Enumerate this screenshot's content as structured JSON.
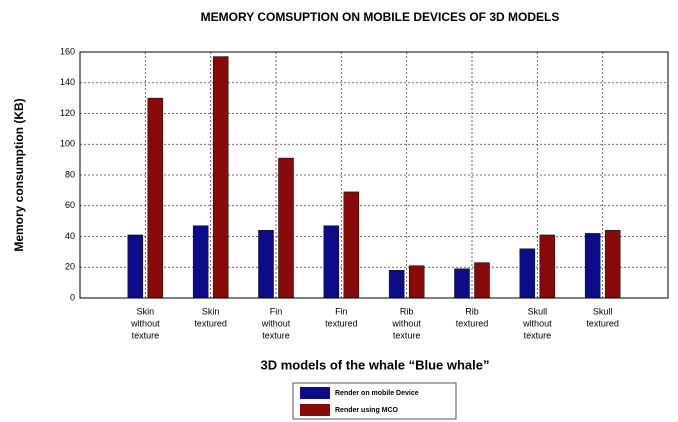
{
  "chart_data": {
    "type": "bar",
    "title": "MEMORY COMSUPTION ON MOBILE DEVICES OF 3D MODELS",
    "x_label": "3D models of the whale “Blue whale”",
    "y_label": "Memory consumption (KB)",
    "categories": [
      [
        "Skin",
        "without",
        "texture"
      ],
      [
        "Skin",
        "textured"
      ],
      [
        "Fin",
        "without",
        "texture"
      ],
      [
        "Fin",
        "textured"
      ],
      [
        "Rib",
        "without",
        "texture"
      ],
      [
        "Rib",
        "textured"
      ],
      [
        "Skull",
        "without",
        "texture"
      ],
      [
        "Skull",
        "textured"
      ]
    ],
    "series": [
      {
        "name": "Render on mobile Device",
        "color": "#0c0c8a",
        "values": [
          41,
          47,
          44,
          47,
          18,
          19,
          32,
          42
        ]
      },
      {
        "name": "Render using MCO",
        "color": "#8a0a0a",
        "values": [
          130,
          157,
          91,
          69,
          21,
          23,
          41,
          44
        ]
      }
    ],
    "ylim": [
      0,
      160
    ],
    "yticks": [
      0,
      20,
      40,
      60,
      80,
      100,
      120,
      140,
      160
    ],
    "grid": true
  }
}
